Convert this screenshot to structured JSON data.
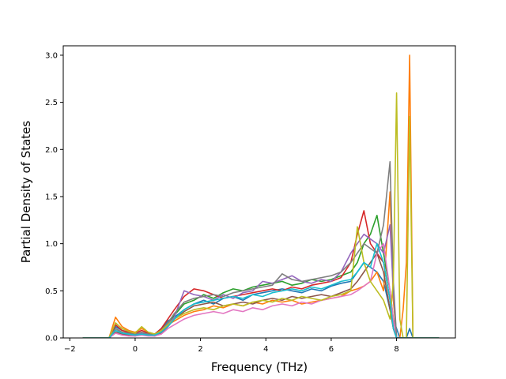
{
  "chart_data": {
    "type": "line",
    "title": "",
    "xlabel": "Frequency (THz)",
    "ylabel": "Partial Density of States",
    "xlim": [
      -2.2,
      9.8
    ],
    "ylim": [
      0.0,
      3.1
    ],
    "xticks": [
      -2,
      0,
      2,
      4,
      6,
      8
    ],
    "yticks": [
      0.0,
      0.5,
      1.0,
      1.5,
      2.0,
      2.5,
      3.0
    ],
    "xtick_labels": [
      "−2",
      "0",
      "2",
      "4",
      "6",
      "8"
    ],
    "ytick_labels": [
      "0.0",
      "0.5",
      "1.0",
      "1.5",
      "2.0",
      "2.5",
      "3.0"
    ],
    "grid": false,
    "legend": "none",
    "palette": [
      "#1f77b4",
      "#ff7f0e",
      "#2ca02c",
      "#d62728",
      "#9467bd",
      "#8c564b",
      "#e377c2",
      "#7f7f7f",
      "#bcbd22",
      "#17becf"
    ],
    "series": [
      {
        "color": "#1f77b4",
        "x": [
          -1.6,
          -0.8,
          -0.6,
          -0.4,
          -0.2,
          0,
          0.2,
          0.4,
          0.6,
          0.8,
          1.0,
          1.2,
          1.5,
          1.8,
          2.1,
          2.4,
          2.7,
          3.0,
          3.3,
          3.6,
          3.9,
          4.2,
          4.5,
          4.8,
          5.1,
          5.4,
          5.7,
          6.0,
          6.3,
          6.6,
          6.8,
          7.0,
          7.2,
          7.4,
          7.6,
          7.8,
          7.9,
          8.0,
          8.1,
          8.2,
          8.3,
          8.4,
          8.5,
          9.3
        ],
        "y": [
          0,
          0,
          0.12,
          0.08,
          0.06,
          0.04,
          0.04,
          0.06,
          0.04,
          0.1,
          0.18,
          0.22,
          0.3,
          0.36,
          0.4,
          0.36,
          0.42,
          0.44,
          0.4,
          0.46,
          0.48,
          0.5,
          0.52,
          0.5,
          0.48,
          0.52,
          0.5,
          0.55,
          0.58,
          0.6,
          0.7,
          0.8,
          0.75,
          0.7,
          0.6,
          0.3,
          0.2,
          0.1,
          0,
          0,
          0,
          0.1,
          0,
          0
        ]
      },
      {
        "color": "#ff7f0e",
        "x": [
          -1.6,
          -0.8,
          -0.6,
          -0.4,
          -0.2,
          0,
          0.2,
          0.4,
          0.6,
          0.8,
          1.0,
          1.2,
          1.5,
          1.8,
          2.1,
          2.4,
          2.7,
          3.0,
          3.3,
          3.6,
          3.9,
          4.2,
          4.5,
          4.8,
          5.1,
          5.4,
          5.7,
          6.0,
          6.3,
          6.6,
          6.8,
          7.0,
          7.2,
          7.4,
          7.6,
          7.8,
          7.9,
          8.0,
          8.1,
          8.2,
          8.3,
          8.4,
          8.5,
          9.3
        ],
        "y": [
          0,
          0,
          0.22,
          0.12,
          0.08,
          0.06,
          0.1,
          0.06,
          0.04,
          0.08,
          0.14,
          0.18,
          0.24,
          0.28,
          0.3,
          0.34,
          0.32,
          0.36,
          0.34,
          0.38,
          0.36,
          0.4,
          0.38,
          0.4,
          0.36,
          0.38,
          0.4,
          0.42,
          0.44,
          0.5,
          0.52,
          0.55,
          0.6,
          0.7,
          0.5,
          1.55,
          0.4,
          0,
          0,
          0.3,
          0.8,
          3.0,
          0,
          0
        ]
      },
      {
        "color": "#2ca02c",
        "x": [
          -1.6,
          -0.8,
          -0.6,
          -0.4,
          -0.2,
          0,
          0.2,
          0.4,
          0.6,
          0.8,
          1.0,
          1.2,
          1.5,
          1.8,
          2.1,
          2.4,
          2.7,
          3.0,
          3.3,
          3.6,
          3.9,
          4.2,
          4.5,
          4.8,
          5.1,
          5.4,
          5.7,
          6.0,
          6.3,
          6.6,
          6.8,
          7.0,
          7.2,
          7.4,
          7.6,
          7.8,
          7.9,
          8.0,
          8.1,
          8.2,
          8.3,
          8.4,
          8.5,
          9.3
        ],
        "y": [
          0,
          0,
          0.1,
          0.06,
          0.04,
          0.03,
          0.05,
          0.04,
          0.03,
          0.08,
          0.16,
          0.24,
          0.36,
          0.4,
          0.46,
          0.42,
          0.48,
          0.52,
          0.5,
          0.54,
          0.56,
          0.58,
          0.6,
          0.56,
          0.58,
          0.62,
          0.6,
          0.62,
          0.66,
          0.7,
          0.8,
          1.0,
          1.1,
          1.3,
          0.9,
          0.5,
          0.2,
          0,
          0,
          0,
          0,
          0,
          0,
          0
        ]
      },
      {
        "color": "#d62728",
        "x": [
          -1.6,
          -0.8,
          -0.6,
          -0.4,
          -0.2,
          0,
          0.2,
          0.4,
          0.6,
          0.8,
          1.0,
          1.2,
          1.5,
          1.8,
          2.1,
          2.4,
          2.7,
          3.0,
          3.3,
          3.6,
          3.9,
          4.2,
          4.5,
          4.8,
          5.1,
          5.4,
          5.7,
          6.0,
          6.3,
          6.6,
          6.8,
          7.0,
          7.2,
          7.4,
          7.6,
          7.8,
          7.9,
          8.0,
          8.1,
          8.2,
          8.3,
          8.4,
          8.5,
          9.3
        ],
        "y": [
          0,
          0,
          0.14,
          0.08,
          0.06,
          0.05,
          0.08,
          0.05,
          0.04,
          0.1,
          0.2,
          0.3,
          0.44,
          0.52,
          0.5,
          0.46,
          0.42,
          0.44,
          0.46,
          0.48,
          0.5,
          0.52,
          0.5,
          0.54,
          0.52,
          0.56,
          0.58,
          0.6,
          0.64,
          0.8,
          1.1,
          1.35,
          1.0,
          0.9,
          0.8,
          0.4,
          0.1,
          0,
          0,
          0,
          0,
          0,
          0,
          0
        ]
      },
      {
        "color": "#9467bd",
        "x": [
          -1.6,
          -0.8,
          -0.6,
          -0.4,
          -0.2,
          0,
          0.2,
          0.4,
          0.6,
          0.8,
          1.0,
          1.2,
          1.5,
          1.8,
          2.1,
          2.4,
          2.7,
          3.0,
          3.3,
          3.6,
          3.9,
          4.2,
          4.5,
          4.8,
          5.1,
          5.4,
          5.7,
          6.0,
          6.3,
          6.6,
          6.8,
          7.0,
          7.2,
          7.4,
          7.6,
          7.8,
          7.9,
          8.0,
          8.1,
          8.2,
          8.3,
          8.4,
          8.5,
          9.3
        ],
        "y": [
          0,
          0,
          0.08,
          0.05,
          0.04,
          0.03,
          0.05,
          0.04,
          0.03,
          0.06,
          0.14,
          0.22,
          0.5,
          0.46,
          0.44,
          0.4,
          0.46,
          0.42,
          0.48,
          0.5,
          0.6,
          0.58,
          0.62,
          0.66,
          0.6,
          0.58,
          0.62,
          0.6,
          0.7,
          0.9,
          1.0,
          1.1,
          1.05,
          1.0,
          0.9,
          1.2,
          0.5,
          0,
          0,
          0,
          0,
          0,
          0,
          0
        ]
      },
      {
        "color": "#8c564b",
        "x": [
          -1.6,
          -0.8,
          -0.6,
          -0.4,
          -0.2,
          0,
          0.2,
          0.4,
          0.6,
          0.8,
          1.0,
          1.2,
          1.5,
          1.8,
          2.1,
          2.4,
          2.7,
          3.0,
          3.3,
          3.6,
          3.9,
          4.2,
          4.5,
          4.8,
          5.1,
          5.4,
          5.7,
          6.0,
          6.3,
          6.6,
          6.8,
          7.0,
          7.2,
          7.4,
          7.6,
          7.8,
          7.9,
          8.0,
          8.1,
          8.2,
          8.3,
          8.4,
          8.5,
          9.3
        ],
        "y": [
          0,
          0,
          0.06,
          0.04,
          0.03,
          0.02,
          0.04,
          0.03,
          0.02,
          0.05,
          0.12,
          0.2,
          0.28,
          0.34,
          0.36,
          0.38,
          0.34,
          0.36,
          0.38,
          0.36,
          0.4,
          0.42,
          0.4,
          0.44,
          0.42,
          0.44,
          0.46,
          0.44,
          0.48,
          0.52,
          0.6,
          0.7,
          0.8,
          0.9,
          0.7,
          0.3,
          0.1,
          0,
          0,
          0,
          0,
          0,
          0,
          0
        ]
      },
      {
        "color": "#e377c2",
        "x": [
          -1.6,
          -0.8,
          -0.6,
          -0.4,
          -0.2,
          0,
          0.2,
          0.4,
          0.6,
          0.8,
          1.0,
          1.2,
          1.5,
          1.8,
          2.1,
          2.4,
          2.7,
          3.0,
          3.3,
          3.6,
          3.9,
          4.2,
          4.5,
          4.8,
          5.1,
          5.4,
          5.7,
          6.0,
          6.3,
          6.6,
          6.8,
          7.0,
          7.2,
          7.4,
          7.6,
          7.8,
          7.9,
          8.0,
          8.1,
          8.2,
          8.3,
          8.4,
          8.5,
          9.3
        ],
        "y": [
          0,
          0,
          0.05,
          0.03,
          0.02,
          0.02,
          0.03,
          0.02,
          0.02,
          0.04,
          0.1,
          0.14,
          0.2,
          0.24,
          0.26,
          0.28,
          0.26,
          0.3,
          0.28,
          0.32,
          0.3,
          0.34,
          0.36,
          0.34,
          0.38,
          0.36,
          0.4,
          0.42,
          0.44,
          0.46,
          0.5,
          0.55,
          0.6,
          0.9,
          1.0,
          0.5,
          0.2,
          0,
          0,
          0,
          0,
          0,
          0,
          0
        ]
      },
      {
        "color": "#7f7f7f",
        "x": [
          -1.6,
          -0.8,
          -0.6,
          -0.4,
          -0.2,
          0,
          0.2,
          0.4,
          0.6,
          0.8,
          1.0,
          1.2,
          1.5,
          1.8,
          2.1,
          2.4,
          2.7,
          3.0,
          3.3,
          3.6,
          3.9,
          4.2,
          4.5,
          4.8,
          5.1,
          5.4,
          5.7,
          6.0,
          6.3,
          6.6,
          6.8,
          7.0,
          7.2,
          7.4,
          7.6,
          7.8,
          7.9,
          8.0,
          8.1,
          8.2,
          8.3,
          8.4,
          8.5,
          9.3
        ],
        "y": [
          0,
          0,
          0.1,
          0.06,
          0.05,
          0.04,
          0.06,
          0.04,
          0.03,
          0.08,
          0.16,
          0.26,
          0.38,
          0.42,
          0.44,
          0.46,
          0.44,
          0.48,
          0.5,
          0.52,
          0.54,
          0.56,
          0.68,
          0.62,
          0.6,
          0.62,
          0.64,
          0.66,
          0.7,
          0.8,
          0.9,
          1.0,
          0.95,
          0.9,
          1.2,
          1.87,
          0.6,
          0,
          0,
          0,
          0,
          0,
          0,
          0
        ]
      },
      {
        "color": "#bcbd22",
        "x": [
          -1.6,
          -0.8,
          -0.6,
          -0.4,
          -0.2,
          0,
          0.2,
          0.4,
          0.6,
          0.8,
          1.0,
          1.2,
          1.5,
          1.8,
          2.1,
          2.4,
          2.7,
          3.0,
          3.3,
          3.6,
          3.9,
          4.2,
          4.5,
          4.8,
          5.1,
          5.4,
          5.7,
          6.0,
          6.3,
          6.6,
          6.8,
          7.0,
          7.2,
          7.4,
          7.6,
          7.8,
          7.9,
          8.0,
          8.1,
          8.2,
          8.3,
          8.4,
          8.5,
          9.3
        ],
        "y": [
          0,
          0,
          0.16,
          0.1,
          0.07,
          0.05,
          0.12,
          0.06,
          0.04,
          0.08,
          0.14,
          0.2,
          0.26,
          0.3,
          0.32,
          0.3,
          0.34,
          0.36,
          0.34,
          0.38,
          0.4,
          0.38,
          0.42,
          0.4,
          0.44,
          0.42,
          0.4,
          0.44,
          0.46,
          0.5,
          1.18,
          0.8,
          0.6,
          0.5,
          0.4,
          0.2,
          0.6,
          2.6,
          0.2,
          0,
          0,
          2.35,
          0,
          0
        ]
      },
      {
        "color": "#17becf",
        "x": [
          -1.6,
          -0.8,
          -0.6,
          -0.4,
          -0.2,
          0,
          0.2,
          0.4,
          0.6,
          0.8,
          1.0,
          1.2,
          1.5,
          1.8,
          2.1,
          2.4,
          2.7,
          3.0,
          3.3,
          3.6,
          3.9,
          4.2,
          4.5,
          4.8,
          5.1,
          5.4,
          5.7,
          6.0,
          6.3,
          6.6,
          6.8,
          7.0,
          7.2,
          7.4,
          7.6,
          7.8,
          7.9,
          8.0,
          8.1,
          8.2,
          8.3,
          8.4,
          8.5,
          9.3
        ],
        "y": [
          0,
          0,
          0.08,
          0.05,
          0.04,
          0.03,
          0.04,
          0.03,
          0.03,
          0.06,
          0.12,
          0.2,
          0.3,
          0.36,
          0.38,
          0.4,
          0.42,
          0.44,
          0.42,
          0.46,
          0.44,
          0.48,
          0.5,
          0.52,
          0.5,
          0.54,
          0.52,
          0.56,
          0.6,
          0.62,
          0.7,
          0.8,
          0.75,
          1.0,
          0.8,
          0.4,
          0.1,
          0,
          0,
          0,
          0,
          0,
          0,
          0
        ]
      }
    ]
  }
}
